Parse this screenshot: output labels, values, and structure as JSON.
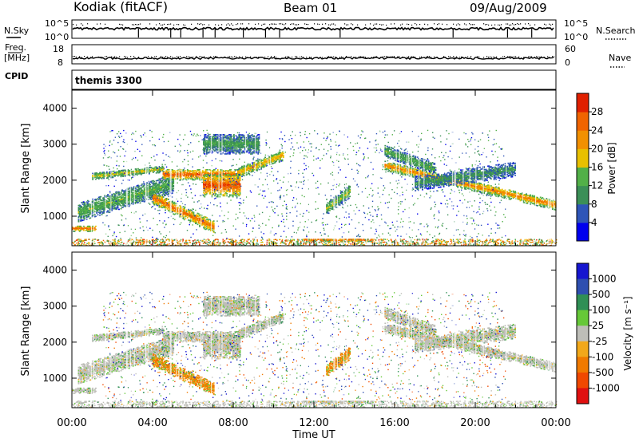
{
  "header": {
    "station": "Kodiak (fitACF)",
    "beam": "Beam 01",
    "date": "09/Aug/2009"
  },
  "top_labels": {
    "nsky": "N.Sky",
    "nsearch": "N.Search",
    "freq_line1": "Freq.",
    "freq_line2": "[MHz]",
    "cpid": "CPID",
    "nave": "Nave",
    "cpid_value": "themis 3300",
    "exp_top": "10^5",
    "exp_bottom": "10^0",
    "freq_top": "18",
    "freq_bottom": "8",
    "nave_top": "60",
    "nave_bottom": "0"
  },
  "colors": {
    "power_scale": [
      "#0000ee",
      "#2e55b8",
      "#3b8f57",
      "#52b048",
      "#e8c000",
      "#f29000",
      "#f06400",
      "#e02000",
      "#d40000"
    ],
    "velocity_scale": [
      "#1616d0",
      "#2e4fb0",
      "#2f8f55",
      "#66c838",
      "#bebeb8",
      "#f2a81a",
      "#f07a00",
      "#f04800",
      "#e01010"
    ]
  },
  "chart_data": [
    {
      "type": "heatmap",
      "name": "power",
      "ylabel": "Slant Range [km]",
      "ylim": [
        180,
        4500
      ],
      "xlim": [
        0,
        24
      ],
      "yticks": [
        "1000",
        "2000",
        "3000",
        "4000"
      ],
      "colorbar_label": "Power [dB]",
      "colorbar_ticks": [
        "4",
        "8",
        "12",
        "16",
        "20",
        "24",
        "28"
      ],
      "colorbar_range": [
        0,
        32
      ]
    },
    {
      "type": "heatmap",
      "name": "velocity",
      "ylabel": "Slant Range [km]",
      "ylim": [
        180,
        4500
      ],
      "xlim": [
        0,
        24
      ],
      "yticks": [
        "1000",
        "2000",
        "3000",
        "4000"
      ],
      "colorbar_label": "Velocity [m s⁻¹]",
      "colorbar_ticks": [
        "1000",
        "500",
        "100",
        "25",
        "-25",
        "-100",
        "-500",
        "-1000"
      ]
    }
  ],
  "time_axis": {
    "label": "Time UT",
    "ticks": [
      "00:00",
      "04:00",
      "08:00",
      "12:00",
      "16:00",
      "20:00",
      "00:00"
    ]
  }
}
